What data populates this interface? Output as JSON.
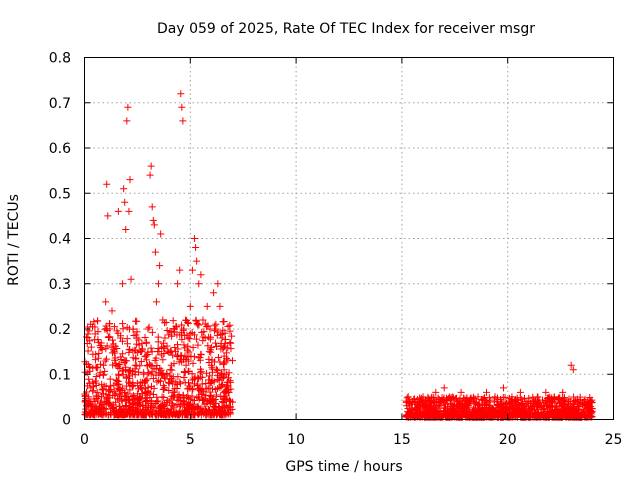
{
  "chart_data": {
    "type": "scatter",
    "title": "Day 059 of 2025, Rate Of TEC Index for receiver msgr",
    "xlabel": "GPS time / hours",
    "ylabel": "ROTI / TECUs",
    "xlim": [
      0,
      25
    ],
    "ylim": [
      0,
      0.8
    ],
    "x_ticks": [
      0,
      5,
      10,
      15,
      20,
      25
    ],
    "x_tick_labels": [
      "0",
      "5",
      "10",
      "15",
      "20",
      "25"
    ],
    "y_ticks": [
      0,
      0.1,
      0.2,
      0.3,
      0.4,
      0.5,
      0.6,
      0.7,
      0.8
    ],
    "y_tick_labels": [
      "0",
      "0.1",
      "0.2",
      "0.3",
      "0.4",
      "0.5",
      "0.6",
      "0.7",
      "0.8"
    ],
    "grid": true,
    "marker": "plus",
    "color": "#ff0000",
    "series": [
      {
        "points": [
          [
            0.1,
            0.03
          ],
          [
            0.2,
            0.05
          ],
          [
            0.3,
            0.07
          ],
          [
            0.4,
            0.02
          ],
          [
            0.5,
            0.04
          ],
          [
            0.6,
            0.06
          ],
          [
            0.7,
            0.03
          ],
          [
            0.8,
            0.05
          ],
          [
            0.9,
            0.12
          ],
          [
            1.0,
            0.26
          ],
          [
            1.05,
            0.52
          ],
          [
            1.1,
            0.45
          ],
          [
            1.2,
            0.2
          ],
          [
            1.3,
            0.24
          ],
          [
            1.4,
            0.15
          ],
          [
            1.5,
            0.08
          ],
          [
            1.6,
            0.46
          ],
          [
            1.7,
            0.18
          ],
          [
            1.8,
            0.3
          ],
          [
            1.85,
            0.51
          ],
          [
            1.9,
            0.48
          ],
          [
            1.95,
            0.42
          ],
          [
            2.0,
            0.66
          ],
          [
            2.05,
            0.69
          ],
          [
            2.1,
            0.46
          ],
          [
            2.15,
            0.53
          ],
          [
            2.2,
            0.31
          ],
          [
            2.3,
            0.2
          ],
          [
            2.4,
            0.12
          ],
          [
            2.5,
            0.08
          ],
          [
            2.6,
            0.05
          ],
          [
            2.7,
            0.15
          ],
          [
            2.8,
            0.1
          ],
          [
            2.9,
            0.06
          ],
          [
            3.0,
            0.2
          ],
          [
            3.1,
            0.54
          ],
          [
            3.15,
            0.56
          ],
          [
            3.2,
            0.47
          ],
          [
            3.25,
            0.44
          ],
          [
            3.3,
            0.43
          ],
          [
            3.35,
            0.37
          ],
          [
            3.4,
            0.26
          ],
          [
            3.5,
            0.3
          ],
          [
            3.55,
            0.34
          ],
          [
            3.6,
            0.41
          ],
          [
            3.7,
            0.22
          ],
          [
            3.8,
            0.18
          ],
          [
            3.9,
            0.1
          ],
          [
            4.0,
            0.08
          ],
          [
            4.1,
            0.12
          ],
          [
            4.2,
            0.05
          ],
          [
            4.3,
            0.15
          ],
          [
            4.4,
            0.3
          ],
          [
            4.5,
            0.33
          ],
          [
            4.55,
            0.72
          ],
          [
            4.6,
            0.69
          ],
          [
            4.65,
            0.66
          ],
          [
            4.7,
            0.2
          ],
          [
            4.8,
            0.12
          ],
          [
            4.9,
            0.18
          ],
          [
            5.0,
            0.25
          ],
          [
            5.1,
            0.33
          ],
          [
            5.2,
            0.4
          ],
          [
            5.25,
            0.38
          ],
          [
            5.3,
            0.35
          ],
          [
            5.4,
            0.3
          ],
          [
            5.5,
            0.32
          ],
          [
            5.6,
            0.22
          ],
          [
            5.7,
            0.18
          ],
          [
            5.8,
            0.25
          ],
          [
            5.9,
            0.15
          ],
          [
            6.0,
            0.12
          ],
          [
            6.1,
            0.28
          ],
          [
            6.2,
            0.2
          ],
          [
            6.3,
            0.3
          ],
          [
            6.4,
            0.25
          ],
          [
            6.5,
            0.18
          ],
          [
            6.6,
            0.14
          ],
          [
            6.7,
            0.1
          ],
          [
            6.8,
            0.06
          ],
          [
            6.9,
            0.04
          ],
          [
            15.3,
            0.05
          ],
          [
            15.5,
            0.04
          ],
          [
            15.8,
            0.03
          ],
          [
            16.0,
            0.05
          ],
          [
            16.3,
            0.04
          ],
          [
            16.6,
            0.06
          ],
          [
            17.0,
            0.07
          ],
          [
            17.4,
            0.05
          ],
          [
            17.8,
            0.06
          ],
          [
            18.2,
            0.04
          ],
          [
            18.6,
            0.05
          ],
          [
            19.0,
            0.06
          ],
          [
            19.4,
            0.05
          ],
          [
            19.8,
            0.07
          ],
          [
            20.2,
            0.05
          ],
          [
            20.6,
            0.06
          ],
          [
            21.0,
            0.04
          ],
          [
            21.4,
            0.05
          ],
          [
            21.8,
            0.06
          ],
          [
            22.2,
            0.05
          ],
          [
            22.6,
            0.06
          ],
          [
            23.0,
            0.12
          ],
          [
            23.1,
            0.11
          ],
          [
            23.3,
            0.04
          ],
          [
            23.6,
            0.03
          ],
          [
            23.9,
            0.04
          ]
        ]
      }
    ],
    "dense_bands": [
      {
        "x_start": 0.0,
        "x_end": 7.0,
        "y_base": 0.01,
        "y_max": 0.22,
        "count": 1100
      },
      {
        "x_start": 15.2,
        "x_end": 24.0,
        "y_base": 0.005,
        "y_max": 0.05,
        "count": 1300
      }
    ]
  }
}
